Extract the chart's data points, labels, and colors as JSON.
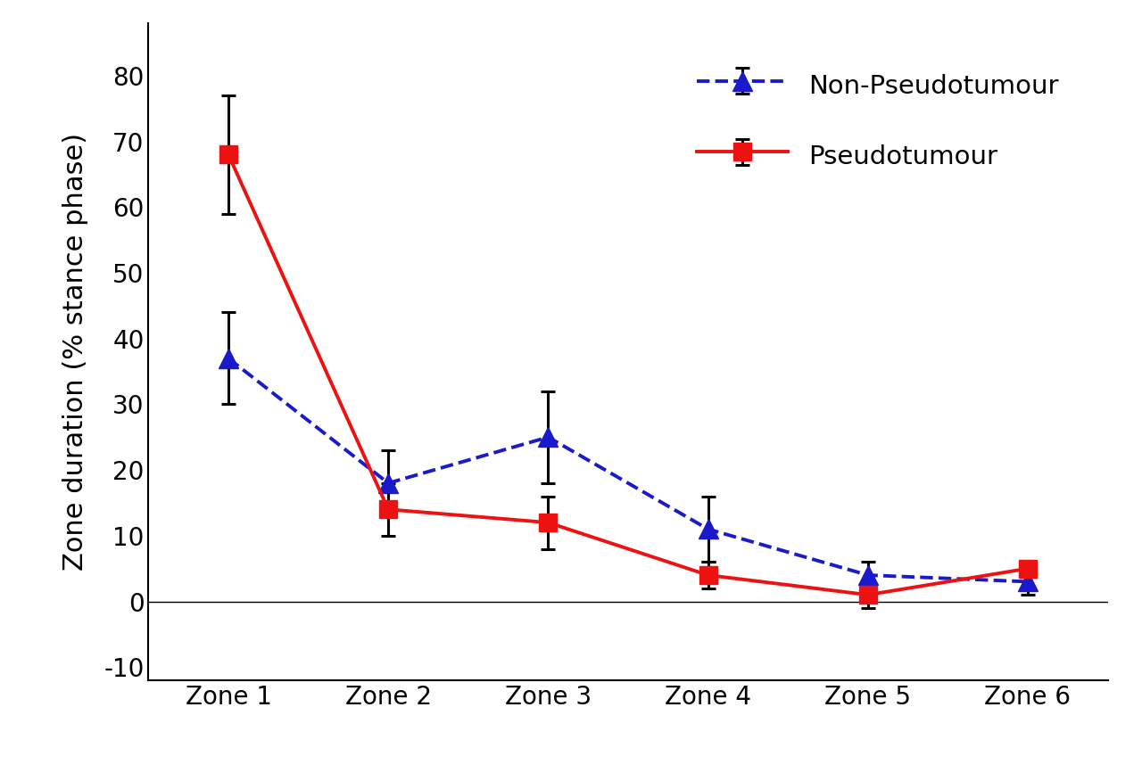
{
  "zones": [
    "Zone 1",
    "Zone 2",
    "Zone 3",
    "Zone 4",
    "Zone 5",
    "Zone 6"
  ],
  "non_pseudo_y": [
    37,
    18,
    25,
    11,
    4,
    3
  ],
  "non_pseudo_yerr": [
    7,
    5,
    7,
    5,
    2,
    2
  ],
  "pseudo_y": [
    68,
    14,
    12,
    4,
    1,
    5
  ],
  "pseudo_yerr": [
    9,
    4,
    4,
    2,
    2,
    1
  ],
  "non_pseudo_color": "#1a1acc",
  "pseudo_color": "#ee1111",
  "error_color": "black",
  "ylabel": "Zone duration (% stance phase)",
  "ylim": [
    -12,
    88
  ],
  "yticks": [
    -10,
    0,
    10,
    20,
    30,
    40,
    50,
    60,
    70,
    80
  ],
  "legend_np": "Non-Pseudotumour",
  "legend_p": "Pseudotumour",
  "marker_np": "^",
  "marker_p": "s",
  "linewidth": 2.8,
  "markersize_np": 16,
  "markersize_p": 14,
  "fontsize_labels": 22,
  "fontsize_ticks": 20,
  "fontsize_legend": 21,
  "background_color": "#ffffff"
}
